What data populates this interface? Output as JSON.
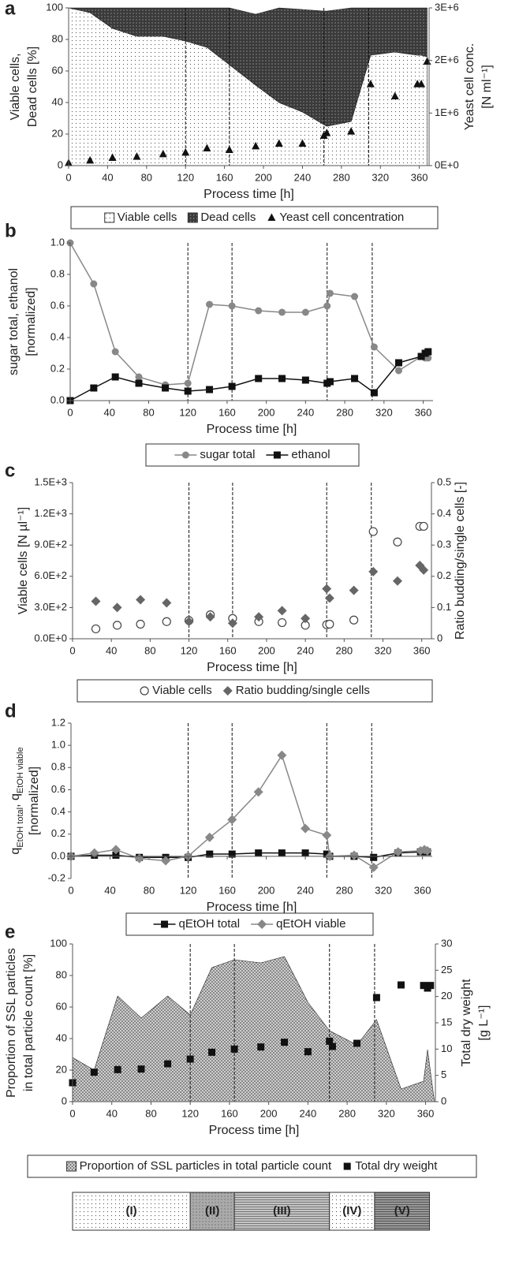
{
  "chart_data": [
    {
      "type": "combo",
      "label": "a",
      "xlabel": "Process time [h]",
      "ylabel": [
        "Viable cells,",
        "Dead cells [%]"
      ],
      "y2label": [
        "Yeast cell conc.",
        "[N ml⁻¹]"
      ],
      "xlim": [
        0,
        370
      ],
      "xticks": [
        0,
        40,
        80,
        120,
        160,
        200,
        240,
        280,
        320,
        360
      ],
      "ylim": [
        0,
        100
      ],
      "yticks": [
        0,
        20,
        40,
        60,
        80,
        100
      ],
      "y2lim": [
        0,
        3000000
      ],
      "y2ticks": [
        {
          "value": 0,
          "label": "0E+0"
        },
        {
          "value": 1000000,
          "label": "1E+6"
        },
        {
          "value": 2000000,
          "label": "2E+6"
        },
        {
          "value": 3000000,
          "label": "3E+6"
        }
      ],
      "vlines": [
        120,
        165,
        262,
        308
      ],
      "x": [
        0,
        22,
        45,
        70,
        97,
        120,
        142,
        165,
        192,
        216,
        240,
        262,
        265,
        290,
        310,
        335,
        358,
        362,
        368
      ],
      "series": [
        {
          "name": "Viable cells",
          "kind": "area",
          "pattern": "dots",
          "color": "#222222",
          "values": [
            100,
            97,
            87,
            82,
            82,
            79,
            75,
            64,
            51,
            40,
            34,
            26,
            25,
            28,
            70,
            72,
            70,
            70,
            69
          ]
        },
        {
          "name": "Dead cells",
          "kind": "area",
          "stack": true,
          "pattern": "crosshatch",
          "color": "#222222",
          "values": [
            0,
            3,
            13,
            18,
            18,
            21,
            25,
            36,
            45,
            60,
            65,
            72,
            73,
            72,
            30,
            28,
            30,
            30,
            31
          ]
        },
        {
          "name": "Yeast cell concentration",
          "kind": "scatter",
          "marker": "triangle",
          "axis": "y2",
          "color": "#111111",
          "values": [
            50000,
            100000,
            150000,
            170000,
            220000,
            250000,
            330000,
            300000,
            370000,
            420000,
            420000,
            570000,
            620000,
            650000,
            1550000,
            1320000,
            1550000,
            1550000,
            1980000
          ]
        }
      ]
    },
    {
      "type": "combo",
      "label": "b",
      "xlabel": "Process time [h]",
      "ylabel": [
        "sugar total, ethanol",
        "[normalized]"
      ],
      "xlim": [
        0,
        370
      ],
      "xticks": [
        0,
        40,
        80,
        120,
        160,
        200,
        240,
        280,
        320,
        360
      ],
      "ylim": [
        0,
        1
      ],
      "yticks": [
        {
          "value": 0,
          "label": "0.0"
        },
        0.2,
        0.4,
        0.6,
        0.8,
        {
          "value": 1,
          "label": "1.0"
        }
      ],
      "vlines": [
        120,
        165,
        262,
        308
      ],
      "x": [
        0,
        24,
        46,
        70,
        97,
        120,
        142,
        165,
        192,
        216,
        240,
        262,
        265,
        290,
        310,
        335,
        358,
        362,
        365
      ],
      "series": [
        {
          "name": "sugar total",
          "kind": "line",
          "marker": "circle",
          "color": "#888888",
          "values": [
            1.0,
            0.74,
            0.31,
            0.15,
            0.1,
            0.11,
            0.61,
            0.6,
            0.57,
            0.56,
            0.56,
            0.6,
            0.68,
            0.66,
            0.34,
            0.19,
            0.28,
            0.27,
            0.27
          ]
        },
        {
          "name": "ethanol",
          "kind": "line",
          "marker": "square",
          "color": "#111111",
          "values": [
            0,
            0.08,
            0.15,
            0.11,
            0.08,
            0.06,
            0.07,
            0.09,
            0.14,
            0.14,
            0.13,
            0.11,
            0.12,
            0.14,
            0.05,
            0.24,
            0.28,
            0.3,
            0.31
          ]
        }
      ]
    },
    {
      "type": "combo",
      "label": "c",
      "xlabel": "Process time [h]",
      "ylabel": [
        "Viable cells [N µl⁻¹]"
      ],
      "y2label": [
        "Ratio budding/single cells [-]"
      ],
      "xlim": [
        0,
        370
      ],
      "xticks": [
        0,
        40,
        80,
        120,
        160,
        200,
        240,
        280,
        320,
        360
      ],
      "ylim": [
        0,
        1500
      ],
      "yticks": [
        {
          "value": 0,
          "label": "0.0E+0"
        },
        {
          "value": 300,
          "label": "3.0E+2"
        },
        {
          "value": 600,
          "label": "6.0E+2"
        },
        {
          "value": 900,
          "label": "9.0E+2"
        },
        {
          "value": 1200,
          "label": "1.2E+3"
        },
        {
          "value": 1500,
          "label": "1.5E+3"
        }
      ],
      "y2lim": [
        0,
        0.5
      ],
      "y2ticks": [
        0,
        0.1,
        0.2,
        0.3,
        0.4,
        0.5
      ],
      "vlines": [
        120,
        165,
        262,
        308
      ],
      "x": [
        24,
        46,
        70,
        97,
        120,
        142,
        165,
        192,
        216,
        240,
        262,
        265,
        290,
        310,
        335,
        358,
        362
      ],
      "series": [
        {
          "name": "Viable cells",
          "kind": "scatter",
          "marker": "open-circle",
          "color": "#444444",
          "values": [
            95,
            130,
            140,
            165,
            175,
            230,
            195,
            165,
            155,
            130,
            135,
            140,
            180,
            1030,
            930,
            1080,
            1080
          ]
        },
        {
          "name": "Ratio budding/single cells",
          "kind": "scatter",
          "marker": "diamond",
          "axis": "y2",
          "color": "#666666",
          "values": [
            0.12,
            0.1,
            0.125,
            0.115,
            0.055,
            0.07,
            0.05,
            0.07,
            0.09,
            0.065,
            0.16,
            0.13,
            0.155,
            0.215,
            0.185,
            0.235,
            0.22
          ]
        }
      ]
    },
    {
      "type": "combo",
      "label": "d",
      "xlabel": "Process time [h]",
      "ylabel": [
        [
          "q",
          "EtOH total",
          ", q",
          "EtOH viable"
        ],
        "[normalized]"
      ],
      "xlim": [
        0,
        370
      ],
      "xticks": [
        0,
        40,
        80,
        120,
        160,
        200,
        240,
        280,
        320,
        360
      ],
      "ylim": [
        -0.2,
        1.2
      ],
      "yticks": [
        -0.2,
        {
          "value": 0,
          "label": "0.0"
        },
        0.2,
        0.4,
        0.6,
        0.8,
        {
          "value": 1,
          "label": "1.0"
        },
        1.2
      ],
      "vlines": [
        120,
        165,
        262,
        308
      ],
      "x": [
        0,
        24,
        46,
        70,
        97,
        120,
        142,
        165,
        192,
        216,
        240,
        262,
        265,
        290,
        310,
        335,
        358,
        362,
        365
      ],
      "series": [
        {
          "name": "qEtOH total",
          "kind": "line",
          "marker": "square",
          "color": "#111111",
          "values": [
            0,
            0.01,
            0.01,
            -0.01,
            -0.01,
            -0.01,
            0.02,
            0.02,
            0.03,
            0.03,
            0.03,
            0.02,
            0,
            0,
            -0.01,
            0.03,
            0.04,
            0.04,
            0.04
          ]
        },
        {
          "name": "qEtOH viable",
          "kind": "line",
          "marker": "diamond",
          "color": "#888888",
          "values": [
            0,
            0.03,
            0.06,
            -0.02,
            -0.04,
            0,
            0.17,
            0.33,
            0.58,
            0.91,
            0.25,
            0.19,
            0,
            0.01,
            -0.1,
            0.04,
            0.05,
            0.06,
            0.05
          ]
        }
      ]
    },
    {
      "type": "combo",
      "label": "e",
      "xlabel": "Process time [h]",
      "ylabel": [
        "Proportion of SSL particles",
        "in total particle count [%]"
      ],
      "y2label": [
        "Total dry weight",
        "[g L⁻¹]"
      ],
      "xlim": [
        0,
        370
      ],
      "xticks": [
        0,
        40,
        80,
        120,
        160,
        200,
        240,
        280,
        320,
        360
      ],
      "ylim": [
        0,
        100
      ],
      "yticks": [
        0,
        20,
        40,
        60,
        80,
        100
      ],
      "y2lim": [
        0,
        30
      ],
      "y2ticks": [
        0,
        5,
        10,
        15,
        20,
        25,
        30
      ],
      "vlines": [
        120,
        165,
        262,
        308
      ],
      "x": [
        0,
        22,
        46,
        70,
        97,
        120,
        142,
        165,
        192,
        216,
        240,
        262,
        265,
        290,
        310,
        335,
        358,
        362,
        365
      ],
      "series": [
        {
          "name": "Proportion of SSL particles in total particle count",
          "kind": "area",
          "pattern": "ssl",
          "color": "#222222",
          "x": [
            0,
            22,
            46,
            70,
            97,
            120,
            142,
            165,
            192,
            216,
            240,
            262,
            290,
            310,
            335,
            358,
            362,
            369
          ],
          "values": [
            28,
            20,
            67,
            53,
            67,
            55,
            85,
            90,
            88,
            92,
            63,
            45,
            36,
            52,
            8,
            13,
            33,
            0
          ]
        },
        {
          "name": "Total dry weight",
          "kind": "scatter",
          "marker": "square",
          "axis": "y2",
          "color": "#111111",
          "values": [
            3.6,
            5.6,
            6.1,
            6.2,
            7.2,
            8.1,
            9.4,
            10,
            10.4,
            11.3,
            9.5,
            11.5,
            10.5,
            11.1,
            19.8,
            22.2,
            22.1,
            21.6,
            22.1
          ]
        }
      ]
    }
  ],
  "phase_bar": {
    "labels": [
      "(I)",
      "(II)",
      "(III)",
      "(IV)",
      "(V)"
    ],
    "bounds": [
      0,
      120,
      165,
      262,
      308,
      364
    ],
    "patterns": [
      "dots",
      "gray-dots",
      "hlines",
      "dots",
      "hlines-dark"
    ]
  }
}
